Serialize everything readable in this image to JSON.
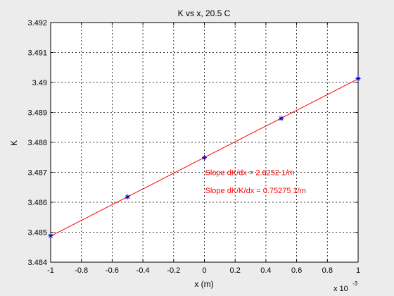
{
  "chart_data": {
    "type": "scatter",
    "title": "K vs x, 20.5 C",
    "xlabel": "x (m)",
    "ylabel": "K",
    "x_multiplier_base": "x 10",
    "x_multiplier_exp": "-3",
    "xlim": [
      -0.001,
      0.001
    ],
    "ylim": [
      3.484,
      3.492
    ],
    "x_tick_values": [
      -0.001,
      -0.0008,
      -0.0006,
      -0.0004,
      -0.0002,
      0,
      0.0002,
      0.0004,
      0.0006,
      0.0008,
      0.001
    ],
    "x_tick_labels": [
      "-1",
      "-0.8",
      "-0.6",
      "-0.4",
      "-0.2",
      "0",
      "0.2",
      "0.4",
      "0.6",
      "0.8",
      "1"
    ],
    "y_tick_values": [
      3.484,
      3.485,
      3.486,
      3.487,
      3.488,
      3.489,
      3.49,
      3.491,
      3.492
    ],
    "y_tick_labels": [
      "3.484",
      "3.485",
      "3.486",
      "3.487",
      "3.488",
      "3.489",
      "3.49",
      "3.491",
      "3.492"
    ],
    "grid": true,
    "series": [
      {
        "kind": "points",
        "marker": "asterisk",
        "color": "#0000cc",
        "x": [
          -0.001,
          -0.0005,
          0,
          0.0005,
          0.001
        ],
        "y": [
          3.48488,
          3.48618,
          3.48749,
          3.4888,
          3.49013
        ]
      },
      {
        "kind": "fit-line",
        "color": "#ff0000",
        "x": [
          -0.001,
          0.001
        ],
        "y": [
          3.48487,
          3.49012
        ]
      }
    ],
    "annotations": [
      {
        "text": "Slope dK/dx = 2.6252 1/m",
        "x": 0,
        "y": 3.487,
        "color": "#ff0000"
      },
      {
        "text": "Slope dK/K/dx = 0.75275 1/m",
        "x": 0,
        "y": 3.4864,
        "color": "#ff0000"
      }
    ],
    "colors": {
      "figure_bg": "#ececec",
      "plot_bg": "#ffffff",
      "axis": "#000000"
    }
  }
}
